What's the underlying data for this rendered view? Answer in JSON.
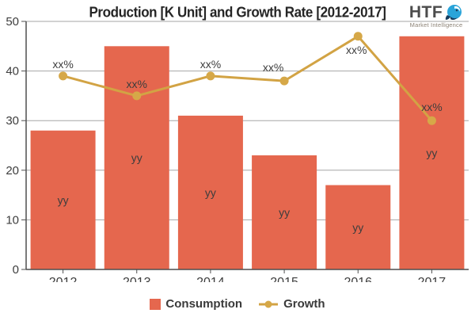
{
  "title": "Production [K Unit] and Growth Rate [2012-2017]",
  "logo": {
    "brand": "HTF",
    "tagline": "Market Intelligence",
    "icon_color": "#2aa4d9",
    "icon_dark": "#173d5e"
  },
  "colors": {
    "bar": "#e5674e",
    "line": "#d2a344",
    "marker": "#d6a848",
    "grid": "#a6a6a6",
    "axis": "#4f4f4f",
    "label_text": "#3d3d3d"
  },
  "chart_data": {
    "type": "bar+line",
    "title": "Production [K Unit] and Growth Rate [2012-2017]",
    "categories": [
      "2012",
      "2013",
      "2014",
      "2015",
      "2016",
      "2017"
    ],
    "series": [
      {
        "name": "Consumption",
        "type": "bar",
        "color": "#e5674e",
        "values": [
          28,
          45,
          31,
          23,
          17,
          47
        ],
        "point_labels": [
          "yy",
          "yy",
          "yy",
          "yy",
          "yy",
          "yy"
        ]
      },
      {
        "name": "Growth",
        "type": "line",
        "color": "#d2a344",
        "values": [
          39,
          35,
          39,
          38,
          47,
          30
        ],
        "point_labels": [
          "xx%",
          "xx%",
          "xx%",
          "xx%",
          "xx%",
          "xx%"
        ]
      }
    ],
    "xlabel": "",
    "ylabel": "",
    "ylim": [
      0,
      50
    ],
    "yticks": [
      0,
      10,
      20,
      30,
      40,
      50
    ],
    "grid": true,
    "legend_position": "bottom"
  }
}
